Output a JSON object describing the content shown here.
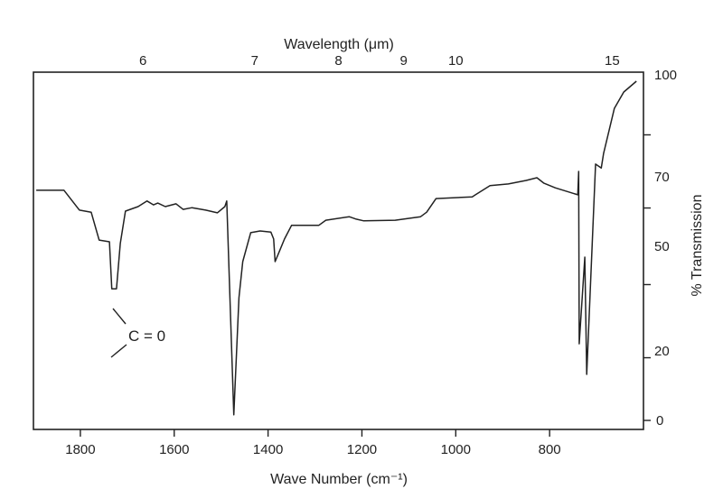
{
  "chart_data": {
    "type": "line",
    "xlabel": "Wave Number (cm⁻¹)",
    "x2label": "Wavelength  (μm)",
    "ylabel": "% Transmission",
    "xlim": [
      1900,
      600
    ],
    "ylim": [
      0,
      100
    ],
    "x_ticks": [
      1800,
      1600,
      1400,
      1200,
      1000,
      800
    ],
    "x2_ticks": [
      6,
      7,
      8,
      9,
      10,
      15
    ],
    "y_tick_labels": [
      100,
      70,
      50,
      20,
      0
    ],
    "y_minor_ticks": [
      82,
      61,
      39,
      18
    ],
    "grid": false,
    "annotation": "C = 0",
    "line_color": "#222222",
    "series": [
      {
        "x": [
          1894,
          1835,
          1802,
          1777,
          1760,
          1738,
          1733,
          1723,
          1715,
          1704,
          1677,
          1658,
          1644,
          1635,
          1619,
          1596,
          1581,
          1562,
          1533,
          1508,
          1492,
          1488,
          1473,
          1462,
          1454,
          1437,
          1417,
          1394,
          1388,
          1385,
          1377,
          1365,
          1350,
          1292,
          1277,
          1227,
          1212,
          1196,
          1129,
          1075,
          1062,
          1042,
          965,
          958,
          927,
          888,
          850,
          827,
          812,
          788,
          740,
          738,
          737,
          725,
          721,
          702,
          690,
          685,
          671,
          662,
          642,
          615
        ],
        "y": [
          66.1,
          66.1,
          60.4,
          59.8,
          51.8,
          51.3,
          37.8,
          37.8,
          50.8,
          60.1,
          61.4,
          63.0,
          61.9,
          62.4,
          61.4,
          62.2,
          60.6,
          61.1,
          60.4,
          59.6,
          61.4,
          63.0,
          1.6,
          35.2,
          45.6,
          53.9,
          54.4,
          54.1,
          52.1,
          45.6,
          48.2,
          52.1,
          56.0,
          56.0,
          57.5,
          58.5,
          57.8,
          57.3,
          57.5,
          58.5,
          59.8,
          63.7,
          64.2,
          64.8,
          67.4,
          67.9,
          68.9,
          69.7,
          68.1,
          66.8,
          64.8,
          71.5,
          22.0,
          46.9,
          13.2,
          73.6,
          72.5,
          76.7,
          84.5,
          89.6,
          94.3,
          97.4
        ]
      }
    ]
  }
}
